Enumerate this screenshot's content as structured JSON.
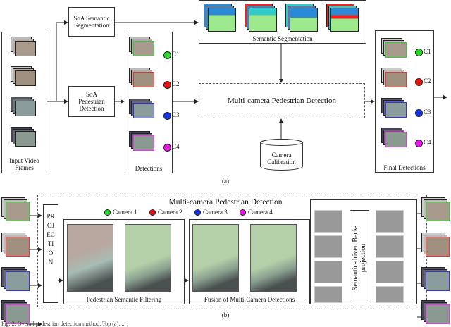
{
  "colors": {
    "c1": "#22dd22",
    "c2": "#ee1111",
    "c3": "#1133ee",
    "c4": "#ee11ee"
  },
  "top": {
    "input_label": "Input Video Frames",
    "soa_semantic": "SoA Semantic Segmentation",
    "soa_pedestrian": "SoA Pedestrian Detection",
    "detections_label": "Detections",
    "semantic_segmentation_label": "Semantic Segmentation",
    "mcpd_label": "Multi-camera Pedestrian Detection",
    "calibration_label": "Camera Calibration",
    "final_label": "Final Detections",
    "cams": [
      "C1",
      "C2",
      "C3",
      "C4"
    ],
    "sublabel": "(a)"
  },
  "bottom": {
    "title": "Multi-camera Pedestrian Detection",
    "projection": "PROJECTION",
    "legend": [
      "Camera 1",
      "Camera 2",
      "Camera 3",
      "Camera 4"
    ],
    "filtering_label": "Pedestrian Semantic Filtering",
    "fusion_label": "Fusion of Multi-Camera Detections",
    "backprojection_label": "Semantic-driven Back-projection",
    "sublabel": "(b)"
  },
  "caption": "Fig. 2: Overall pedestrian detection method. Top (a): ..."
}
